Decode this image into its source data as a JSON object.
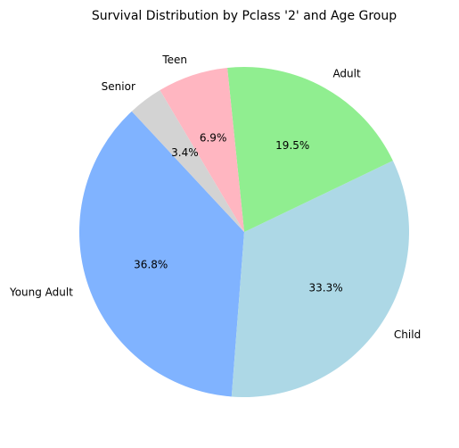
{
  "chart_data": {
    "type": "pie",
    "title": "Survival Distribution by Pclass '2' and Age Group",
    "start_angle_deg": 133,
    "direction": "counterclockwise",
    "slices": [
      {
        "label": "Young Adult",
        "value": 36.8,
        "pct_label": "36.8%",
        "color": "#80b3ff"
      },
      {
        "label": "Child",
        "value": 33.3,
        "pct_label": "33.3%",
        "color": "#add8e6"
      },
      {
        "label": "Adult",
        "value": 19.5,
        "pct_label": "19.5%",
        "color": "#90ee90"
      },
      {
        "label": "Teen",
        "value": 6.9,
        "pct_label": "6.9%",
        "color": "#ffb6c1"
      },
      {
        "label": "Senior",
        "value": 3.4,
        "pct_label": "3.4%",
        "color": "#d3d3d3"
      }
    ]
  }
}
